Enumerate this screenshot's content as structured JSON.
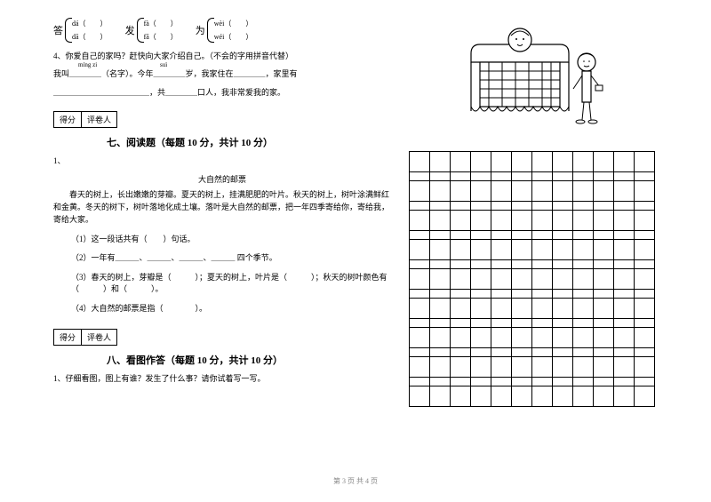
{
  "brackets": {
    "g1": {
      "char": "答",
      "top": "dá（　　）",
      "bot": "dā（　　）"
    },
    "g2": {
      "char": "发",
      "top": "fà（　　）",
      "bot": "fā（　　）"
    },
    "g3": {
      "char": "为",
      "top": "wèi（　　）",
      "bot": "wéi（　　）"
    }
  },
  "q4": {
    "line1": "4、你爱自己的家吗？赶快向大家介绍自己。（不会的字用拼音代替）",
    "pinyin1": "míng zi",
    "pinyin2": "suì",
    "line2_a": "我叫＿＿＿＿（名字）。今年＿＿＿＿岁，我家住在＿＿＿＿，家里有",
    "line2_b": "＿＿＿＿＿＿＿＿＿＿＿＿，共＿＿＿＿口人，我非常爱我的家。"
  },
  "scorebox": {
    "l": "得分",
    "r": "评卷人"
  },
  "section7": {
    "title": "七、阅读题（每题 10 分，共计 10 分）",
    "num": "1、",
    "subtitle": "大自然的邮票",
    "passage": "　　春天的树上，长出嫩嫩的芽瓣。夏天的树上，挂满肥肥的叶片。秋天的树上，树叶涂满鲜红和金黄。冬天的树下，树叶落地化成土壤。落叶是大自然的邮票，把一年四季寄给你，寄给我，寄给大家。",
    "q1": "（1）这一段话共有（　　）句话。",
    "q2": "（2）一年有＿＿＿、＿＿＿、＿＿＿、＿＿＿ 四个季节。",
    "q3": "（3）春天的树上，芽瓣是（　　　）；夏天的树上，叶片是（　　　）；秋天的树叶颜色有（　　　）和（　　　）。",
    "q4": "（4）大自然的邮票是指（　　　　）。"
  },
  "section8": {
    "title": "八、看图作答（每题 10 分，共计 10 分）",
    "q1": "1、仔细看图，图上有谁？发生了什么事？请你试着写一写。"
  },
  "grid": {
    "cols": 12,
    "bigrows": 9
  },
  "footer": "第 3 页 共 4 页"
}
